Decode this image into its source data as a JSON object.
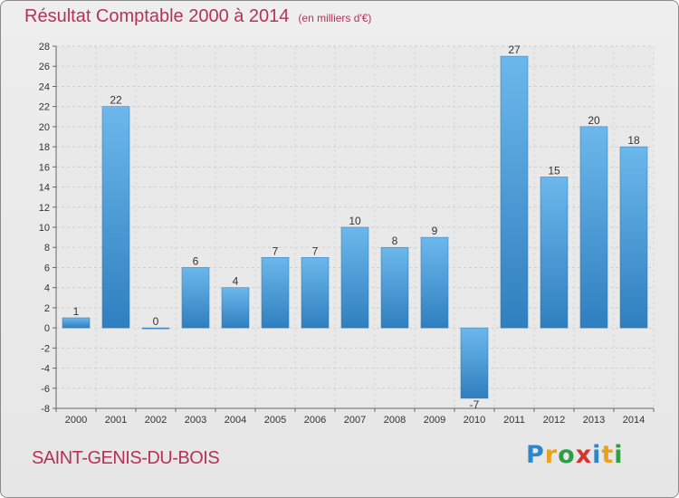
{
  "chart_data": {
    "type": "bar",
    "title": "Résultat Comptable 2000 à 2014",
    "subtitle": "(en milliers d'€)",
    "categories": [
      "2000",
      "2001",
      "2002",
      "2003",
      "2004",
      "2005",
      "2006",
      "2007",
      "2008",
      "2009",
      "2010",
      "2011",
      "2012",
      "2013",
      "2014"
    ],
    "values": [
      1,
      22,
      0,
      6,
      4,
      7,
      7,
      10,
      8,
      9,
      -7,
      27,
      15,
      20,
      18
    ],
    "ylim": [
      -8,
      28
    ],
    "yticks": [
      -8,
      -6,
      -4,
      -2,
      0,
      2,
      4,
      6,
      8,
      10,
      12,
      14,
      16,
      18,
      20,
      22,
      24,
      26,
      28
    ],
    "grid": true,
    "xlabel": "",
    "ylabel": ""
  },
  "footer": {
    "commune": "SAINT-GENIS-DU-BOIS",
    "logo_letters": [
      "P",
      "r",
      "o",
      "x",
      "i",
      "t",
      "i"
    ],
    "logo_colors": [
      "#2f86c9",
      "#e8a21c",
      "#2e9e45",
      "#d6342c",
      "#2f86c9",
      "#e8a21c",
      "#2e9e45"
    ]
  },
  "colors": {
    "bar": "#4a9fdc",
    "bar_light": "#6cb8ec",
    "bar_dark": "#2f7fbf",
    "text": "#333333",
    "title": "#b5325a"
  }
}
